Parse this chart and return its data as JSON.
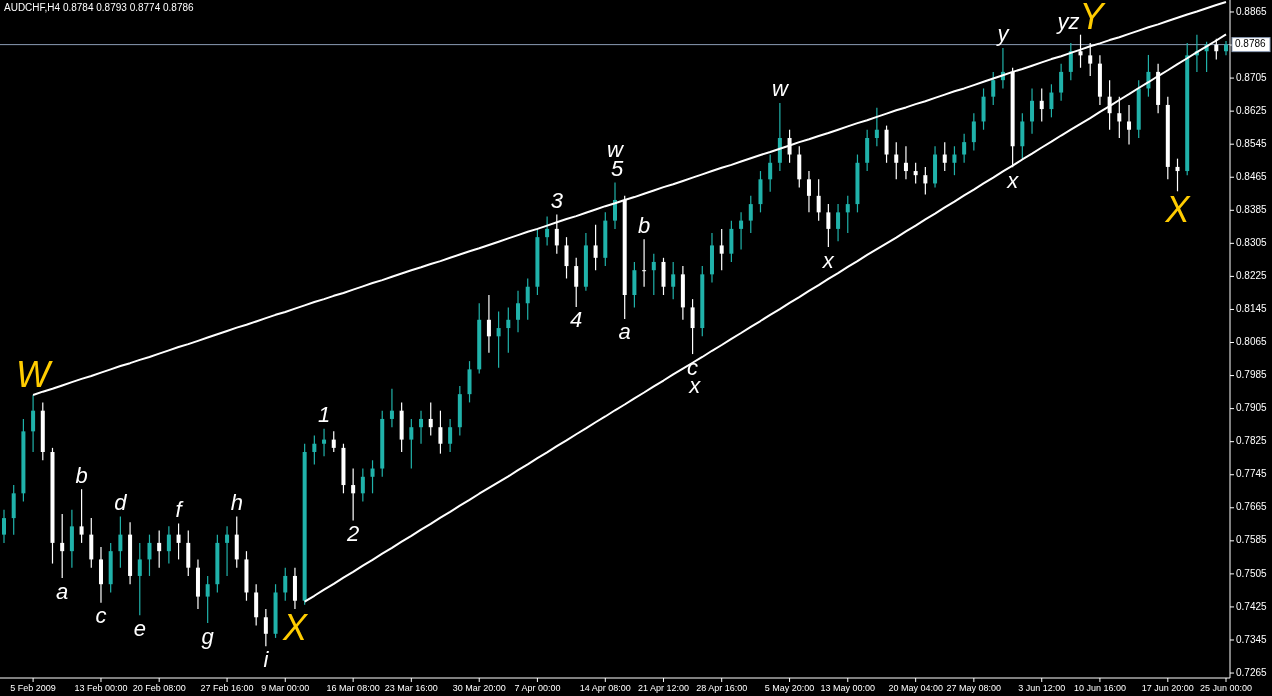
{
  "chart_data": {
    "type": "candlestick",
    "title": "AUDCHF,H4  0.8784 0.8793 0.8774 0.8786",
    "categories": [
      null,
      null,
      null,
      "5 Feb 2009",
      null,
      null,
      null,
      null,
      null,
      null,
      "13 Feb 00:00",
      null,
      null,
      null,
      null,
      null,
      "20 Feb 08:00",
      null,
      null,
      null,
      null,
      null,
      null,
      "27 Feb 16:00",
      null,
      null,
      null,
      null,
      null,
      "9 Mar 00:00",
      null,
      null,
      null,
      null,
      null,
      null,
      "16 Mar 08:00",
      null,
      null,
      null,
      null,
      null,
      "23 Mar 16:00",
      null,
      null,
      null,
      null,
      null,
      null,
      "30 Mar 20:00",
      null,
      null,
      null,
      null,
      null,
      "7 Apr 00:00",
      null,
      null,
      null,
      null,
      null,
      null,
      "14 Apr 08:00",
      null,
      null,
      null,
      null,
      null,
      "21 Apr 12:00",
      null,
      null,
      null,
      null,
      null,
      "28 Apr 16:00",
      null,
      null,
      null,
      null,
      null,
      null,
      "5 May 20:00",
      null,
      null,
      null,
      null,
      null,
      "13 May 00:00",
      null,
      null,
      null,
      null,
      null,
      null,
      "20 May 04:00",
      null,
      null,
      null,
      null,
      null,
      "27 May 08:00",
      null,
      null,
      null,
      null,
      null,
      null,
      "3 Jun 12:00",
      null,
      null,
      null,
      null,
      null,
      "10 Jun 16:00",
      null,
      null,
      null,
      null,
      null,
      null,
      "17 Jun 20:00",
      null,
      null,
      null,
      null,
      null,
      "25 Jun 00:00"
    ],
    "ohlc": [
      [
        0.76,
        0.766,
        0.758,
        0.764
      ],
      [
        0.764,
        0.772,
        0.76,
        0.77
      ],
      [
        0.77,
        0.788,
        0.768,
        0.785
      ],
      [
        0.785,
        0.7938,
        0.78,
        0.79
      ],
      [
        0.79,
        0.792,
        0.778,
        0.78
      ],
      [
        0.78,
        0.781,
        0.753,
        0.758
      ],
      [
        0.758,
        0.765,
        0.7495,
        0.756
      ],
      [
        0.756,
        0.766,
        0.752,
        0.762
      ],
      [
        0.762,
        0.771,
        0.758,
        0.76
      ],
      [
        0.76,
        0.764,
        0.752,
        0.754
      ],
      [
        0.754,
        0.757,
        0.7435,
        0.748
      ],
      [
        0.748,
        0.758,
        0.746,
        0.756
      ],
      [
        0.756,
        0.7644,
        0.752,
        0.76
      ],
      [
        0.76,
        0.763,
        0.748,
        0.75
      ],
      [
        0.75,
        0.758,
        0.7405,
        0.754
      ],
      [
        0.754,
        0.76,
        0.75,
        0.758
      ],
      [
        0.758,
        0.761,
        0.752,
        0.756
      ],
      [
        0.756,
        0.762,
        0.753,
        0.76
      ],
      [
        0.76,
        0.7627,
        0.754,
        0.758
      ],
      [
        0.758,
        0.761,
        0.75,
        0.752
      ],
      [
        0.752,
        0.754,
        0.742,
        0.745
      ],
      [
        0.745,
        0.75,
        0.7386,
        0.748
      ],
      [
        0.748,
        0.76,
        0.746,
        0.758
      ],
      [
        0.758,
        0.762,
        0.75,
        0.76
      ],
      [
        0.76,
        0.7644,
        0.752,
        0.754
      ],
      [
        0.754,
        0.756,
        0.744,
        0.746
      ],
      [
        0.746,
        0.748,
        0.738,
        0.74
      ],
      [
        0.74,
        0.742,
        0.733,
        0.736
      ],
      [
        0.736,
        0.748,
        0.735,
        0.746
      ],
      [
        0.746,
        0.752,
        0.744,
        0.75
      ],
      [
        0.75,
        0.752,
        0.742,
        0.744
      ],
      [
        0.744,
        0.782,
        0.743,
        0.78
      ],
      [
        0.78,
        0.784,
        0.777,
        0.782
      ],
      [
        0.782,
        0.7856,
        0.779,
        0.783
      ],
      [
        0.783,
        0.785,
        0.78,
        0.781
      ],
      [
        0.781,
        0.782,
        0.77,
        0.772
      ],
      [
        0.772,
        0.776,
        0.7634,
        0.77
      ],
      [
        0.77,
        0.776,
        0.768,
        0.774
      ],
      [
        0.774,
        0.778,
        0.77,
        0.776
      ],
      [
        0.776,
        0.79,
        0.774,
        0.788
      ],
      [
        0.788,
        0.7953,
        0.786,
        0.79
      ],
      [
        0.79,
        0.792,
        0.78,
        0.783
      ],
      [
        0.783,
        0.788,
        0.776,
        0.786
      ],
      [
        0.786,
        0.79,
        0.782,
        0.788
      ],
      [
        0.788,
        0.792,
        0.784,
        0.786
      ],
      [
        0.786,
        0.79,
        0.7796,
        0.782
      ],
      [
        0.782,
        0.788,
        0.78,
        0.786
      ],
      [
        0.786,
        0.796,
        0.784,
        0.794
      ],
      [
        0.794,
        0.802,
        0.792,
        0.8
      ],
      [
        0.8,
        0.816,
        0.799,
        0.812
      ],
      [
        0.812,
        0.818,
        0.804,
        0.808
      ],
      [
        0.808,
        0.814,
        0.8004,
        0.81
      ],
      [
        0.81,
        0.815,
        0.804,
        0.812
      ],
      [
        0.812,
        0.819,
        0.809,
        0.816
      ],
      [
        0.816,
        0.822,
        0.812,
        0.82
      ],
      [
        0.82,
        0.834,
        0.818,
        0.832
      ],
      [
        0.832,
        0.837,
        0.83,
        0.834
      ],
      [
        0.834,
        0.8375,
        0.828,
        0.83
      ],
      [
        0.83,
        0.832,
        0.822,
        0.825
      ],
      [
        0.825,
        0.827,
        0.8151,
        0.82
      ],
      [
        0.82,
        0.833,
        0.819,
        0.83
      ],
      [
        0.83,
        0.835,
        0.824,
        0.827
      ],
      [
        0.827,
        0.838,
        0.825,
        0.836
      ],
      [
        0.836,
        0.8452,
        0.834,
        0.841
      ],
      [
        0.841,
        0.842,
        0.8122,
        0.818
      ],
      [
        0.818,
        0.826,
        0.815,
        0.824
      ],
      [
        0.824,
        0.8315,
        0.82,
        0.824
      ],
      [
        0.824,
        0.828,
        0.818,
        0.826
      ],
      [
        0.826,
        0.827,
        0.818,
        0.82
      ],
      [
        0.82,
        0.826,
        0.817,
        0.823
      ],
      [
        0.823,
        0.825,
        0.812,
        0.815
      ],
      [
        0.815,
        0.817,
        0.8037,
        0.81
      ],
      [
        0.81,
        0.825,
        0.808,
        0.823
      ],
      [
        0.823,
        0.833,
        0.821,
        0.83
      ],
      [
        0.83,
        0.834,
        0.824,
        0.828
      ],
      [
        0.828,
        0.836,
        0.826,
        0.834
      ],
      [
        0.834,
        0.838,
        0.829,
        0.836
      ],
      [
        0.836,
        0.842,
        0.833,
        0.84
      ],
      [
        0.84,
        0.848,
        0.838,
        0.846
      ],
      [
        0.846,
        0.852,
        0.843,
        0.85
      ],
      [
        0.85,
        0.8645,
        0.848,
        0.856
      ],
      [
        0.856,
        0.858,
        0.85,
        0.852
      ],
      [
        0.852,
        0.854,
        0.844,
        0.846
      ],
      [
        0.846,
        0.848,
        0.838,
        0.842
      ],
      [
        0.842,
        0.846,
        0.836,
        0.838
      ],
      [
        0.838,
        0.84,
        0.8296,
        0.834
      ],
      [
        0.834,
        0.84,
        0.831,
        0.838
      ],
      [
        0.838,
        0.842,
        0.833,
        0.84
      ],
      [
        0.84,
        0.852,
        0.838,
        0.85
      ],
      [
        0.85,
        0.858,
        0.848,
        0.856
      ],
      [
        0.856,
        0.8633,
        0.854,
        0.858
      ],
      [
        0.858,
        0.859,
        0.85,
        0.852
      ],
      [
        0.852,
        0.855,
        0.846,
        0.85
      ],
      [
        0.85,
        0.854,
        0.846,
        0.848
      ],
      [
        0.848,
        0.85,
        0.845,
        0.847
      ],
      [
        0.847,
        0.849,
        0.8423,
        0.845
      ],
      [
        0.845,
        0.854,
        0.844,
        0.852
      ],
      [
        0.852,
        0.855,
        0.848,
        0.85
      ],
      [
        0.85,
        0.854,
        0.847,
        0.852
      ],
      [
        0.852,
        0.857,
        0.85,
        0.855
      ],
      [
        0.855,
        0.862,
        0.853,
        0.86
      ],
      [
        0.86,
        0.868,
        0.858,
        0.866
      ],
      [
        0.866,
        0.872,
        0.864,
        0.87
      ],
      [
        0.87,
        0.8778,
        0.868,
        0.872
      ],
      [
        0.872,
        0.873,
        0.8489,
        0.854
      ],
      [
        0.854,
        0.862,
        0.851,
        0.86
      ],
      [
        0.86,
        0.868,
        0.857,
        0.865
      ],
      [
        0.865,
        0.868,
        0.86,
        0.863
      ],
      [
        0.863,
        0.869,
        0.861,
        0.867
      ],
      [
        0.867,
        0.874,
        0.865,
        0.872
      ],
      [
        0.872,
        0.879,
        0.87,
        0.877
      ],
      [
        0.877,
        0.881,
        0.873,
        0.876
      ],
      [
        0.876,
        0.879,
        0.871,
        0.874
      ],
      [
        0.874,
        0.876,
        0.864,
        0.866
      ],
      [
        0.866,
        0.87,
        0.858,
        0.862
      ],
      [
        0.862,
        0.866,
        0.856,
        0.86
      ],
      [
        0.86,
        0.864,
        0.8544,
        0.858
      ],
      [
        0.858,
        0.87,
        0.856,
        0.868
      ],
      [
        0.868,
        0.8761,
        0.866,
        0.872
      ],
      [
        0.872,
        0.874,
        0.862,
        0.864
      ],
      [
        0.864,
        0.866,
        0.846,
        0.849
      ],
      [
        0.849,
        0.851,
        0.8431,
        0.848
      ],
      [
        0.848,
        0.879,
        0.847,
        0.876
      ],
      [
        0.876,
        0.881,
        0.872,
        0.877
      ],
      [
        0.877,
        0.8793,
        0.872,
        0.8786
      ],
      [
        0.8786,
        0.88,
        0.875,
        0.877
      ],
      [
        0.877,
        0.8795,
        0.876,
        0.8786
      ]
    ],
    "colors": [
      "#20b2aa",
      "#20b2aa",
      "#20b2aa",
      "#20b2aa",
      "#ffffff",
      "#ffffff",
      "#ffffff",
      "#20b2aa",
      "#ffffff",
      "#ffffff",
      "#ffffff",
      "#20b2aa",
      "#20b2aa",
      "#ffffff",
      "#20b2aa",
      "#20b2aa",
      "#ffffff",
      "#20b2aa",
      "#ffffff",
      "#ffffff",
      "#ffffff",
      "#20b2aa",
      "#20b2aa",
      "#20b2aa",
      "#ffffff",
      "#ffffff",
      "#ffffff",
      "#ffffff",
      "#20b2aa",
      "#20b2aa",
      "#ffffff",
      "#20b2aa",
      "#20b2aa",
      "#20b2aa",
      "#ffffff",
      "#ffffff",
      "#ffffff",
      "#20b2aa",
      "#20b2aa",
      "#20b2aa",
      "#20b2aa",
      "#ffffff",
      "#20b2aa",
      "#20b2aa",
      "#ffffff",
      "#ffffff",
      "#20b2aa",
      "#20b2aa",
      "#20b2aa",
      "#20b2aa",
      "#ffffff",
      "#20b2aa",
      "#20b2aa",
      "#20b2aa",
      "#20b2aa",
      "#20b2aa",
      "#20b2aa",
      "#ffffff",
      "#ffffff",
      "#ffffff",
      "#20b2aa",
      "#ffffff",
      "#20b2aa",
      "#20b2aa",
      "#ffffff",
      "#20b2aa",
      "#ffffff",
      "#20b2aa",
      "#ffffff",
      "#20b2aa",
      "#ffffff",
      "#ffffff",
      "#20b2aa",
      "#20b2aa",
      "#ffffff",
      "#20b2aa",
      "#20b2aa",
      "#20b2aa",
      "#20b2aa",
      "#20b2aa",
      "#20b2aa",
      "#ffffff",
      "#ffffff",
      "#ffffff",
      "#ffffff",
      "#ffffff",
      "#20b2aa",
      "#20b2aa",
      "#20b2aa",
      "#20b2aa",
      "#20b2aa",
      "#ffffff",
      "#ffffff",
      "#ffffff",
      "#ffffff",
      "#ffffff",
      "#20b2aa",
      "#ffffff",
      "#20b2aa",
      "#20b2aa",
      "#20b2aa",
      "#20b2aa",
      "#20b2aa",
      "#20b2aa",
      "#ffffff",
      "#20b2aa",
      "#20b2aa",
      "#ffffff",
      "#20b2aa",
      "#20b2aa",
      "#20b2aa",
      "#ffffff",
      "#ffffff",
      "#ffffff",
      "#ffffff",
      "#ffffff",
      "#ffffff",
      "#20b2aa",
      "#20b2aa",
      "#ffffff",
      "#ffffff",
      "#ffffff",
      "#20b2aa",
      "#20b2aa",
      "#20b2aa",
      "#ffffff",
      "#20b2aa"
    ],
    "value_labels": [
      null,
      null,
      null,
      "W",
      null,
      null,
      "a",
      null,
      "b",
      null,
      "c",
      null,
      "d",
      null,
      "e",
      null,
      null,
      null,
      "f",
      null,
      null,
      "g",
      null,
      null,
      "h",
      null,
      null,
      "i",
      null,
      null,
      "X",
      null,
      null,
      "1",
      null,
      null,
      "2",
      null,
      null,
      null,
      null,
      null,
      null,
      null,
      null,
      null,
      null,
      null,
      null,
      null,
      null,
      null,
      null,
      null,
      null,
      null,
      null,
      "3",
      null,
      "4",
      null,
      null,
      null,
      "w\n5",
      "a",
      null,
      "b",
      null,
      null,
      null,
      null,
      "c\nx",
      null,
      null,
      null,
      null,
      null,
      null,
      null,
      null,
      "w",
      null,
      null,
      null,
      null,
      "x",
      null,
      null,
      null,
      null,
      null,
      null,
      null,
      null,
      null,
      null,
      null,
      null,
      null,
      null,
      null,
      null,
      null,
      "y",
      "x",
      null,
      null,
      null,
      null,
      null,
      null,
      "yzY",
      null,
      null,
      null,
      null,
      null,
      null,
      null,
      null,
      null,
      "X",
      null,
      null,
      null,
      null,
      null
    ],
    "series": [
      {
        "type": "line",
        "color": "#ffffff",
        "values": [
          null,
          null,
          null,
          0.7938,
          0.7946,
          0.7953,
          0.7961,
          0.7969,
          0.7977,
          0.7984,
          0.7992,
          0.8,
          0.8008,
          0.8015,
          0.8023,
          0.803,
          0.8038,
          0.8046,
          0.8054,
          0.8061,
          0.8069,
          0.8077,
          0.8085,
          0.8093,
          0.8101,
          0.8108,
          0.8116,
          0.8124,
          0.8132,
          0.8139,
          0.8147,
          0.8155,
          0.8163,
          0.817,
          0.8178,
          0.8185,
          0.8193,
          0.8201,
          0.8209,
          0.8216,
          0.8224,
          0.8232,
          0.824,
          0.8247,
          0.8255,
          0.8262,
          0.827,
          0.8278,
          0.8286,
          0.8293,
          0.8301,
          0.8309,
          0.8317,
          0.8325,
          0.8333,
          0.834,
          0.8348,
          0.8356,
          0.8364,
          0.8371,
          0.8379,
          0.8387,
          0.8395,
          0.8402,
          0.841,
          0.8417,
          0.8425,
          0.8433,
          0.8441,
          0.8448,
          0.8456,
          0.8464,
          0.8472,
          0.848,
          0.8488,
          0.8495,
          0.8503,
          0.8511,
          0.8519,
          0.8526,
          0.8534,
          0.8542,
          0.855,
          0.8557,
          0.8565,
          0.8572,
          0.858,
          0.8588,
          0.8596,
          0.8603,
          0.8611,
          0.8619,
          0.8627,
          0.8634,
          0.8642,
          0.8649,
          0.8657,
          0.8665,
          0.8673,
          0.868,
          0.8688,
          0.8696,
          0.8704,
          0.8712,
          0.872,
          0.8727,
          0.8735,
          0.8743,
          0.8751,
          0.8758,
          0.8766,
          0.8774,
          0.8782,
          0.8789,
          0.8797,
          0.8804,
          0.8812,
          0.882,
          0.8828,
          0.8835,
          0.8843,
          0.8851,
          0.8859,
          0.8866,
          0.8874,
          0.8882,
          0.8889
        ]
      },
      {
        "type": "line",
        "color": "#ffffff",
        "values": [
          null,
          null,
          null,
          null,
          null,
          null,
          null,
          null,
          null,
          null,
          null,
          null,
          null,
          null,
          null,
          null,
          null,
          null,
          null,
          null,
          null,
          null,
          null,
          null,
          null,
          null,
          null,
          null,
          null,
          null,
          null,
          0.7438,
          0.7452,
          0.7467,
          0.7481,
          0.7496,
          0.751,
          0.7525,
          0.7539,
          0.7554,
          0.7568,
          0.7583,
          0.7597,
          0.7612,
          0.7626,
          0.7641,
          0.7655,
          0.767,
          0.7684,
          0.7699,
          0.7713,
          0.7727,
          0.7741,
          0.7756,
          0.777,
          0.7785,
          0.7799,
          0.7814,
          0.7828,
          0.7843,
          0.7857,
          0.7872,
          0.7886,
          0.7901,
          0.7915,
          0.793,
          0.7944,
          0.7959,
          0.7973,
          0.7988,
          0.8002,
          0.8016,
          0.803,
          0.8045,
          0.8059,
          0.8074,
          0.8088,
          0.8103,
          0.8117,
          0.8132,
          0.8146,
          0.8161,
          0.8175,
          0.819,
          0.8204,
          0.8219,
          0.8233,
          0.8248,
          0.8262,
          0.8277,
          0.8291,
          0.8305,
          0.8319,
          0.8334,
          0.8348,
          0.8363,
          0.8377,
          0.8392,
          0.8406,
          0.8421,
          0.8435,
          0.845,
          0.8464,
          0.8479,
          0.8493,
          0.8508,
          0.8522,
          0.8537,
          0.8551,
          0.8566,
          0.858,
          0.8594,
          0.8608,
          0.8623,
          0.8637,
          0.8652,
          0.8666,
          0.8681,
          0.8695,
          0.871,
          0.8724,
          0.8739,
          0.8753,
          0.8768,
          0.8782,
          0.8796,
          0.8811
        ]
      }
    ],
    "ylim": [
      0.7253,
      0.8894
    ],
    "yticks": [
      0.7265,
      0.7345,
      0.7425,
      0.7505,
      0.7585,
      0.7665,
      0.7745,
      0.7825,
      0.7905,
      0.7985,
      0.8065,
      0.8145,
      0.8225,
      0.8305,
      0.8385,
      0.8465,
      0.8545,
      0.8625,
      0.8705,
      {
        "value": 0.8785,
        "label": null
      },
      0.8865
    ],
    "ref_lines": [
      {
        "axis": "y",
        "value": 0.8786,
        "label": "0.8786",
        "color": "#8b9bb4"
      }
    ]
  }
}
